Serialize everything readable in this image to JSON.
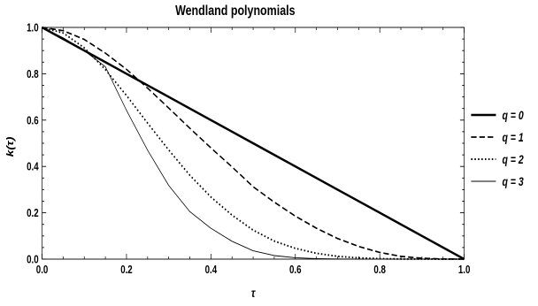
{
  "chart_data": {
    "type": "line",
    "title": "Wendland polynomials",
    "xlabel": "τ",
    "ylabel": "k(τ)",
    "xlim": [
      0.0,
      1.0
    ],
    "ylim": [
      0.0,
      1.0
    ],
    "x_ticks": [
      "0.0",
      "0.2",
      "0.4",
      "0.6",
      "0.8",
      "1.0"
    ],
    "y_ticks": [
      "0.0",
      "0.2",
      "0.4",
      "0.6",
      "0.8",
      "1.0"
    ],
    "grid": false,
    "legend_position": "right",
    "series": [
      {
        "name": "q = 0",
        "style": "solid-thick",
        "x": [
          0.0,
          0.1,
          0.2,
          0.3,
          0.4,
          0.5,
          0.6,
          0.7,
          0.8,
          0.9,
          1.0
        ],
        "y": [
          1.0,
          0.9,
          0.8,
          0.7,
          0.6,
          0.5,
          0.4,
          0.3,
          0.2,
          0.1,
          0.0
        ]
      },
      {
        "name": "q = 1",
        "style": "dashed",
        "x": [
          0.0,
          0.05,
          0.1,
          0.15,
          0.2,
          0.25,
          0.3,
          0.35,
          0.4,
          0.45,
          0.5,
          0.55,
          0.6,
          0.65,
          0.7,
          0.75,
          0.8,
          0.85,
          0.9,
          0.95,
          1.0
        ],
        "y": [
          1.0,
          0.986,
          0.948,
          0.889,
          0.819,
          0.738,
          0.652,
          0.565,
          0.48,
          0.398,
          0.3125,
          0.246,
          0.1856,
          0.1334,
          0.0891,
          0.0547,
          0.0288,
          0.0119,
          0.0037,
          0.0005,
          0.0
        ]
      },
      {
        "name": "q = 2",
        "style": "dotted",
        "x": [
          0.0,
          0.05,
          0.1,
          0.15,
          0.2,
          0.25,
          0.3,
          0.35,
          0.4,
          0.45,
          0.5,
          0.55,
          0.6,
          0.65,
          0.7,
          0.75,
          0.8,
          0.85,
          0.9,
          0.95,
          1.0
        ],
        "y": [
          1.0,
          0.976,
          0.912,
          0.818,
          0.706,
          0.587,
          0.471,
          0.362,
          0.268,
          0.19,
          0.125,
          0.078,
          0.0464,
          0.0251,
          0.0121,
          0.0054,
          0.0019,
          0.0005,
          0.0001,
          0.0,
          0.0
        ]
      },
      {
        "name": "q = 3",
        "style": "solid-thin",
        "x": [
          0.0,
          0.05,
          0.1,
          0.15,
          0.2,
          0.25,
          0.3,
          0.35,
          0.4,
          0.45,
          0.5,
          0.55,
          0.6,
          0.65,
          0.7,
          0.75,
          0.8,
          0.85,
          0.9,
          0.95,
          1.0
        ],
        "y": [
          1.0,
          0.955,
          0.9,
          0.83,
          0.642,
          0.47,
          0.318,
          0.205,
          0.133,
          0.077,
          0.0359,
          0.0153,
          0.0059,
          0.002,
          0.0006,
          0.0001,
          0.0,
          0.0,
          0.0,
          0.0,
          0.0
        ]
      }
    ]
  }
}
